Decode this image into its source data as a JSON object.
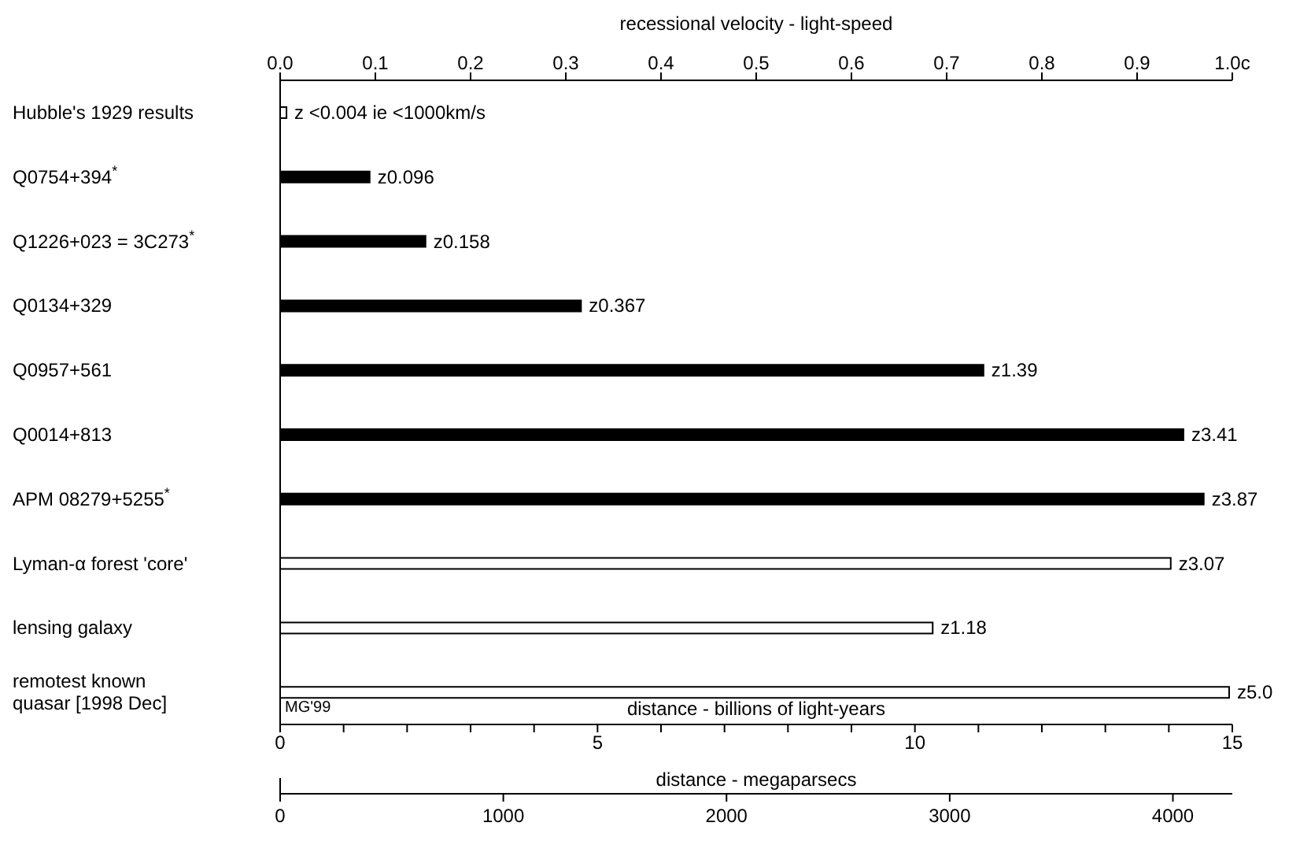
{
  "chart_data": {
    "type": "bar",
    "orientation": "horizontal",
    "categories": [
      "Hubble's 1929 results",
      "Q0754+394$^{*}$",
      "Q1226+023 = 3C273$^{*}$",
      "Q0134+329",
      "Q0957+561",
      "Q0014+813",
      "APM 08279+5255$^{*}$",
      "Lyman-α forest 'core'",
      "lensing galaxy",
      "remotest known quasar [1998 Dec]"
    ],
    "values": [
      0.1,
      1.41,
      2.29,
      4.74,
      11.08,
      14.23,
      14.55,
      14.03,
      10.28,
      14.95
    ],
    "colors": [
      "#ffffff",
      "#000000",
      "#000000",
      "#000000",
      "#000000",
      "#000000",
      "#000000",
      "#ffffff",
      "#ffffff",
      "#ffffff"
    ],
    "value_labels": [
      "z <0.004 ie <1000km/s",
      "z0.096",
      "z0.158",
      "z0.367",
      "z1.39",
      "z3.41",
      "z3.87",
      "z3.07",
      "z1.18",
      "z5.0"
    ],
    "xlabel": "distance  -  billions of light-years",
    "xlim": [
      0,
      15
    ],
    "xticks": [
      0,
      {
        "value": 1,
        "label": null
      },
      {
        "value": 2,
        "label": null
      },
      {
        "value": 3,
        "label": null
      },
      {
        "value": 4,
        "label": null
      },
      5,
      {
        "value": 6,
        "label": null
      },
      {
        "value": 7,
        "label": null
      },
      {
        "value": 8,
        "label": null
      },
      {
        "value": 9,
        "label": null
      },
      10,
      {
        "value": 11,
        "label": null
      },
      {
        "value": 12,
        "label": null
      },
      {
        "value": 13,
        "label": null
      },
      {
        "value": 14,
        "label": null
      },
      15
    ],
    "x2label": "recessional velocity  -  light-speed",
    "x2lim": [
      0,
      1
    ],
    "x2ticks": [
      {
        "value": 0,
        "label": "0.0"
      },
      0.1,
      0.2,
      0.3,
      0.4,
      0.5,
      0.6,
      0.7,
      0.8,
      0.9,
      {
        "value": 1,
        "label": "1.0c"
      }
    ],
    "annotations": [
      "MG'99",
      "distance  -  megaparsecs",
      "0",
      "1000",
      "2000",
      "3000",
      "4000"
    ]
  }
}
